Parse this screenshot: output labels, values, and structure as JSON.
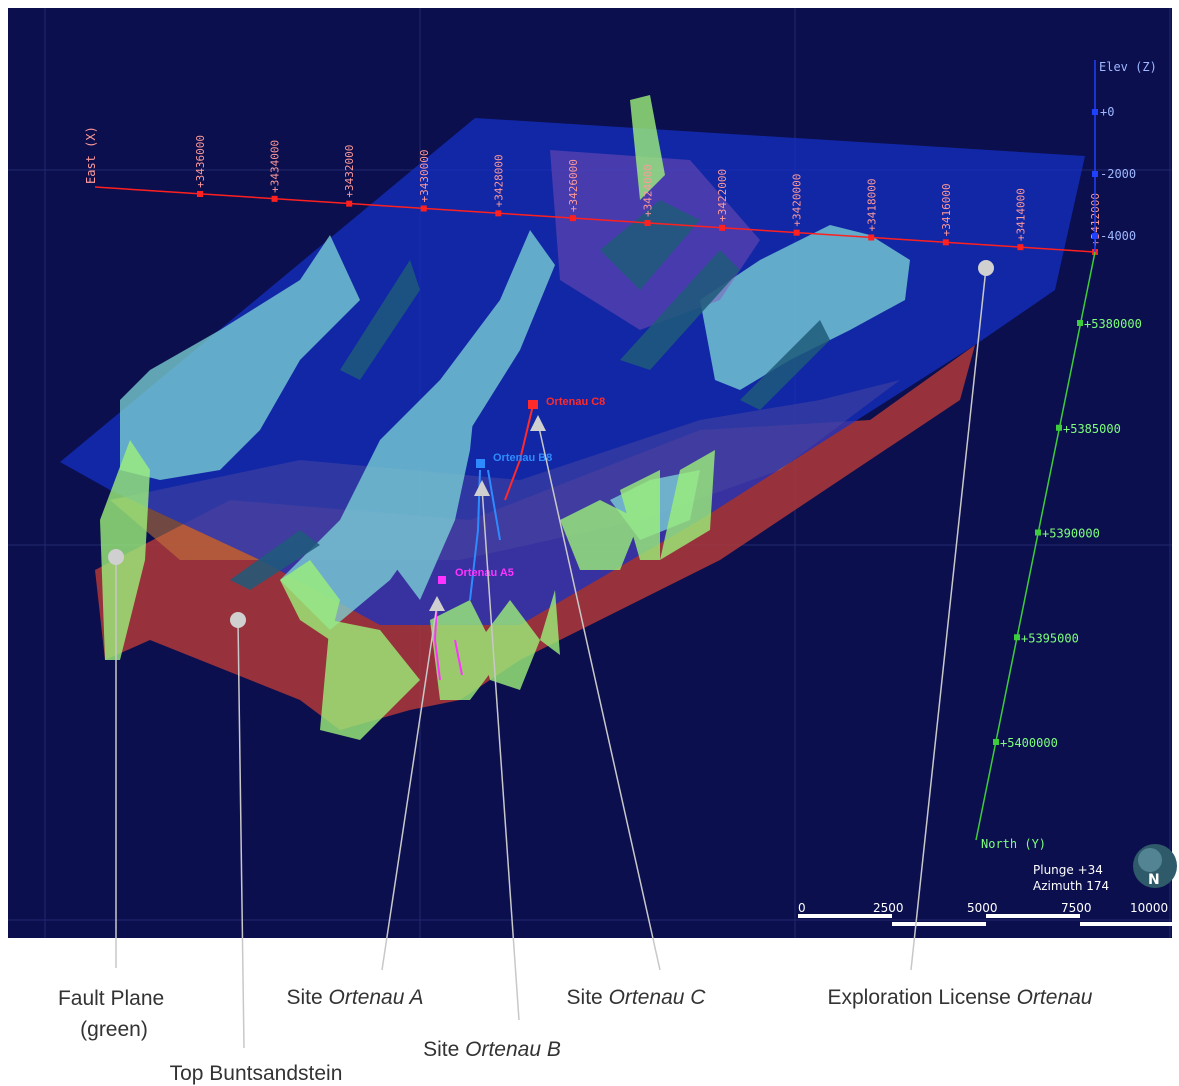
{
  "viewer": {
    "east_axis": {
      "title": "East (X)",
      "ticks": [
        "+3436000",
        "+3434000",
        "+3432000",
        "+3430000",
        "+3428000",
        "+3426000",
        "+3424000",
        "+3422000",
        "+3420000",
        "+3418000",
        "+3416000",
        "+3414000",
        "+3412000"
      ]
    },
    "elev_axis": {
      "title": "Elev (Z)",
      "ticks": [
        "+0",
        "-2000",
        "-4000"
      ]
    },
    "north_axis": {
      "title": "North (Y)",
      "ticks": [
        "+5380000",
        "+5385000",
        "+5390000",
        "+5395000",
        "+5400000"
      ]
    },
    "sites": {
      "a": {
        "label": "Ortenau A5",
        "color": "#ff33ff"
      },
      "b": {
        "label": "Ortenau B8",
        "color": "#2e8bff"
      },
      "c": {
        "label": "Ortenau C8",
        "color": "#ff2a2a"
      }
    },
    "view_info": {
      "plunge": "Plunge +34",
      "azimuth": "Azimuth 174"
    },
    "compass_letter": "N",
    "scale_bar": {
      "labels": [
        "0",
        "2500",
        "5000",
        "7500",
        "10000"
      ]
    },
    "colors": {
      "background": "#0b0f4d",
      "license_plane": "#1430c8",
      "fault_plane": "#9cf07a",
      "top_buntsandstein": "#b0383a",
      "surface_cyan": "#7fd8d8"
    }
  },
  "annotations": {
    "fault_plane": {
      "line1": "Fault Plane",
      "line2": "(green)"
    },
    "top_buntsandstein": {
      "text": "Top Buntsandstein"
    },
    "site_a": {
      "prefix": "Site ",
      "name": "Ortenau A"
    },
    "site_b": {
      "prefix": "Site ",
      "name": "Ortenau B"
    },
    "site_c": {
      "prefix": "Site ",
      "name": "Ortenau C"
    },
    "license": {
      "prefix": "Exploration License ",
      "name": "Ortenau"
    }
  }
}
